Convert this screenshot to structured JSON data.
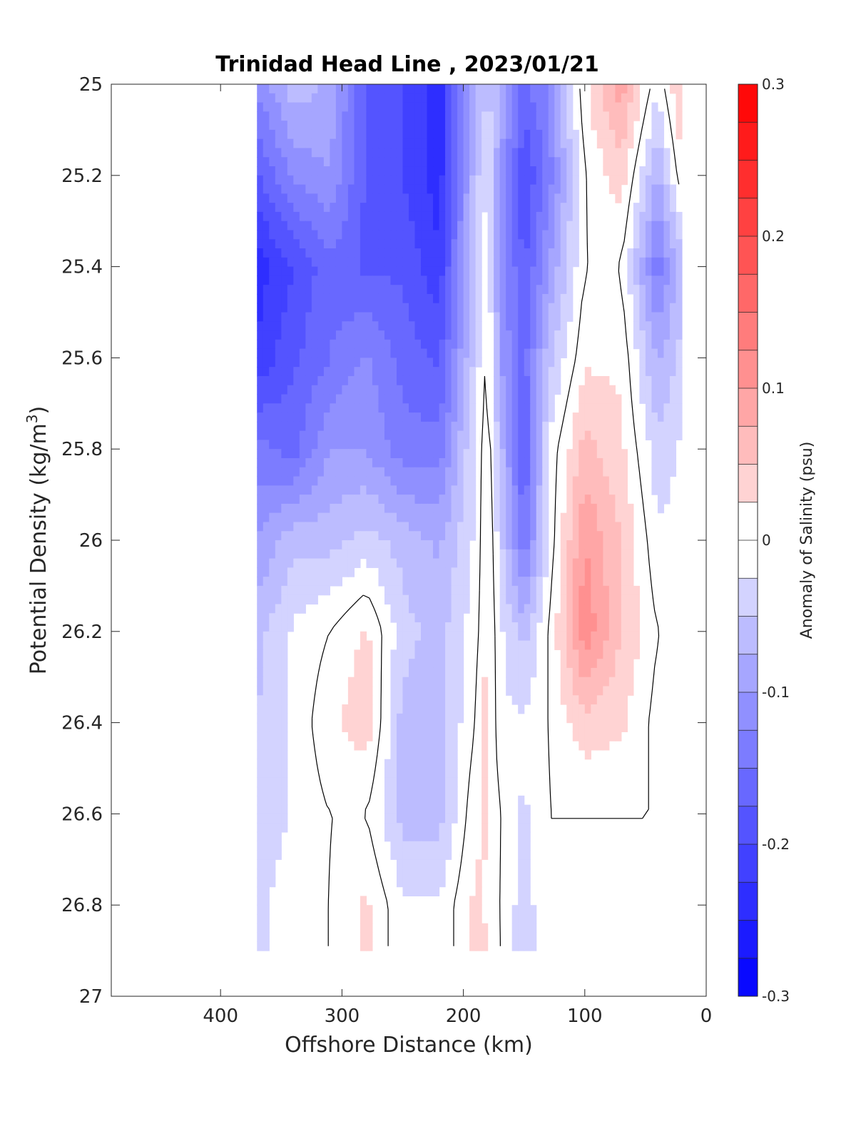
{
  "chart_data": {
    "type": "heatmap",
    "subtype": "filled-contour",
    "title": "Trinidad Head Line , 2023/01/21",
    "xlabel": "Offshore Distance (km)",
    "ylabel_main": "Potential Density (kg/m",
    "ylabel_sup": "3",
    "ylabel_end": ")",
    "xlim": [
      490,
      0
    ],
    "ylim": [
      25,
      27
    ],
    "x_reversed": true,
    "y_reversed": true,
    "x_ticks": [
      400,
      300,
      200,
      100,
      0
    ],
    "x_tick_labels": [
      "400",
      "300",
      "200",
      "100",
      "0"
    ],
    "y_ticks": [
      25,
      25.2,
      25.4,
      25.6,
      25.8,
      26,
      26.2,
      26.4,
      26.6,
      26.8,
      27
    ],
    "y_tick_labels": [
      "25",
      "25.2",
      "25.4",
      "25.6",
      "25.8",
      "26",
      "26.2",
      "26.4",
      "26.6",
      "26.8",
      "27"
    ],
    "colorbar": {
      "label": "Anomaly of Salinity (psu)",
      "min": -0.3,
      "max": 0.3,
      "step": 0.025,
      "ticks": [
        0.3,
        0.2,
        0.1,
        0,
        -0.1,
        -0.2,
        -0.3
      ],
      "tick_labels": [
        "0.3",
        "0.2",
        "0.1",
        "0",
        "-0.1",
        "-0.2",
        "-0.3"
      ],
      "colormap": "blue-white-red"
    },
    "data_extent": {
      "x": [
        20,
        370
      ],
      "y": [
        25,
        26.9
      ]
    },
    "x": [
      370,
      340,
      310,
      280,
      250,
      220,
      190,
      180,
      170,
      150,
      130,
      100,
      70,
      40,
      20
    ],
    "y": [
      25.0,
      25.2,
      25.4,
      25.6,
      25.8,
      26.0,
      26.2,
      26.4,
      26.6,
      26.8,
      26.9
    ],
    "z": [
      [
        -0.12,
        -0.06,
        -0.08,
        -0.18,
        -0.2,
        -0.24,
        -0.08,
        -0.05,
        -0.07,
        -0.16,
        -0.12,
        0.02,
        0.09,
        -0.02,
        0.06
      ],
      [
        -0.18,
        -0.12,
        -0.1,
        -0.18,
        -0.2,
        -0.24,
        -0.06,
        -0.02,
        -0.1,
        -0.2,
        -0.14,
        0.0,
        0.04,
        -0.08,
        0.02
      ],
      [
        -0.24,
        -0.2,
        -0.16,
        -0.18,
        -0.18,
        -0.22,
        -0.04,
        -0.01,
        -0.1,
        -0.18,
        -0.1,
        0.0,
        0.0,
        -0.14,
        -0.06
      ],
      [
        -0.22,
        -0.18,
        -0.15,
        -0.12,
        -0.16,
        -0.18,
        -0.04,
        0.01,
        -0.1,
        -0.16,
        -0.06,
        0.02,
        0.02,
        -0.08,
        -0.04
      ],
      [
        -0.14,
        -0.16,
        -0.1,
        -0.1,
        -0.14,
        -0.14,
        -0.02,
        0.02,
        -0.06,
        -0.18,
        -0.02,
        0.06,
        0.03,
        -0.04,
        -0.02
      ],
      [
        -0.1,
        -0.06,
        -0.06,
        -0.04,
        -0.06,
        -0.08,
        -0.02,
        0.03,
        -0.04,
        -0.15,
        -0.02,
        0.1,
        0.05,
        -0.02,
        -0.02
      ],
      [
        -0.06,
        -0.02,
        0.0,
        0.03,
        -0.04,
        -0.06,
        -0.01,
        0.03,
        -0.02,
        -0.06,
        0.0,
        0.12,
        0.05,
        0.0,
        -0.01
      ],
      [
        -0.05,
        -0.02,
        0.02,
        0.04,
        -0.06,
        -0.06,
        0.0,
        0.04,
        -0.02,
        -0.02,
        0.0,
        0.04,
        0.03,
        -0.01,
        0.0
      ],
      [
        -0.05,
        -0.02,
        0.0,
        0.0,
        -0.06,
        -0.06,
        0.02,
        0.03,
        0.0,
        -0.03,
        0.0,
        0.0,
        0.0,
        0.0,
        0.0
      ],
      [
        -0.03,
        -0.01,
        0.0,
        0.03,
        -0.02,
        -0.02,
        0.03,
        0.02,
        0.0,
        -0.04,
        0.0,
        0.0,
        0.0,
        0.0,
        0.0
      ],
      [
        -0.03,
        -0.01,
        0.0,
        0.03,
        -0.02,
        -0.02,
        0.03,
        0.03,
        0.0,
        -0.04,
        0.0,
        0.0,
        0.0,
        0.0,
        0.0
      ]
    ]
  }
}
